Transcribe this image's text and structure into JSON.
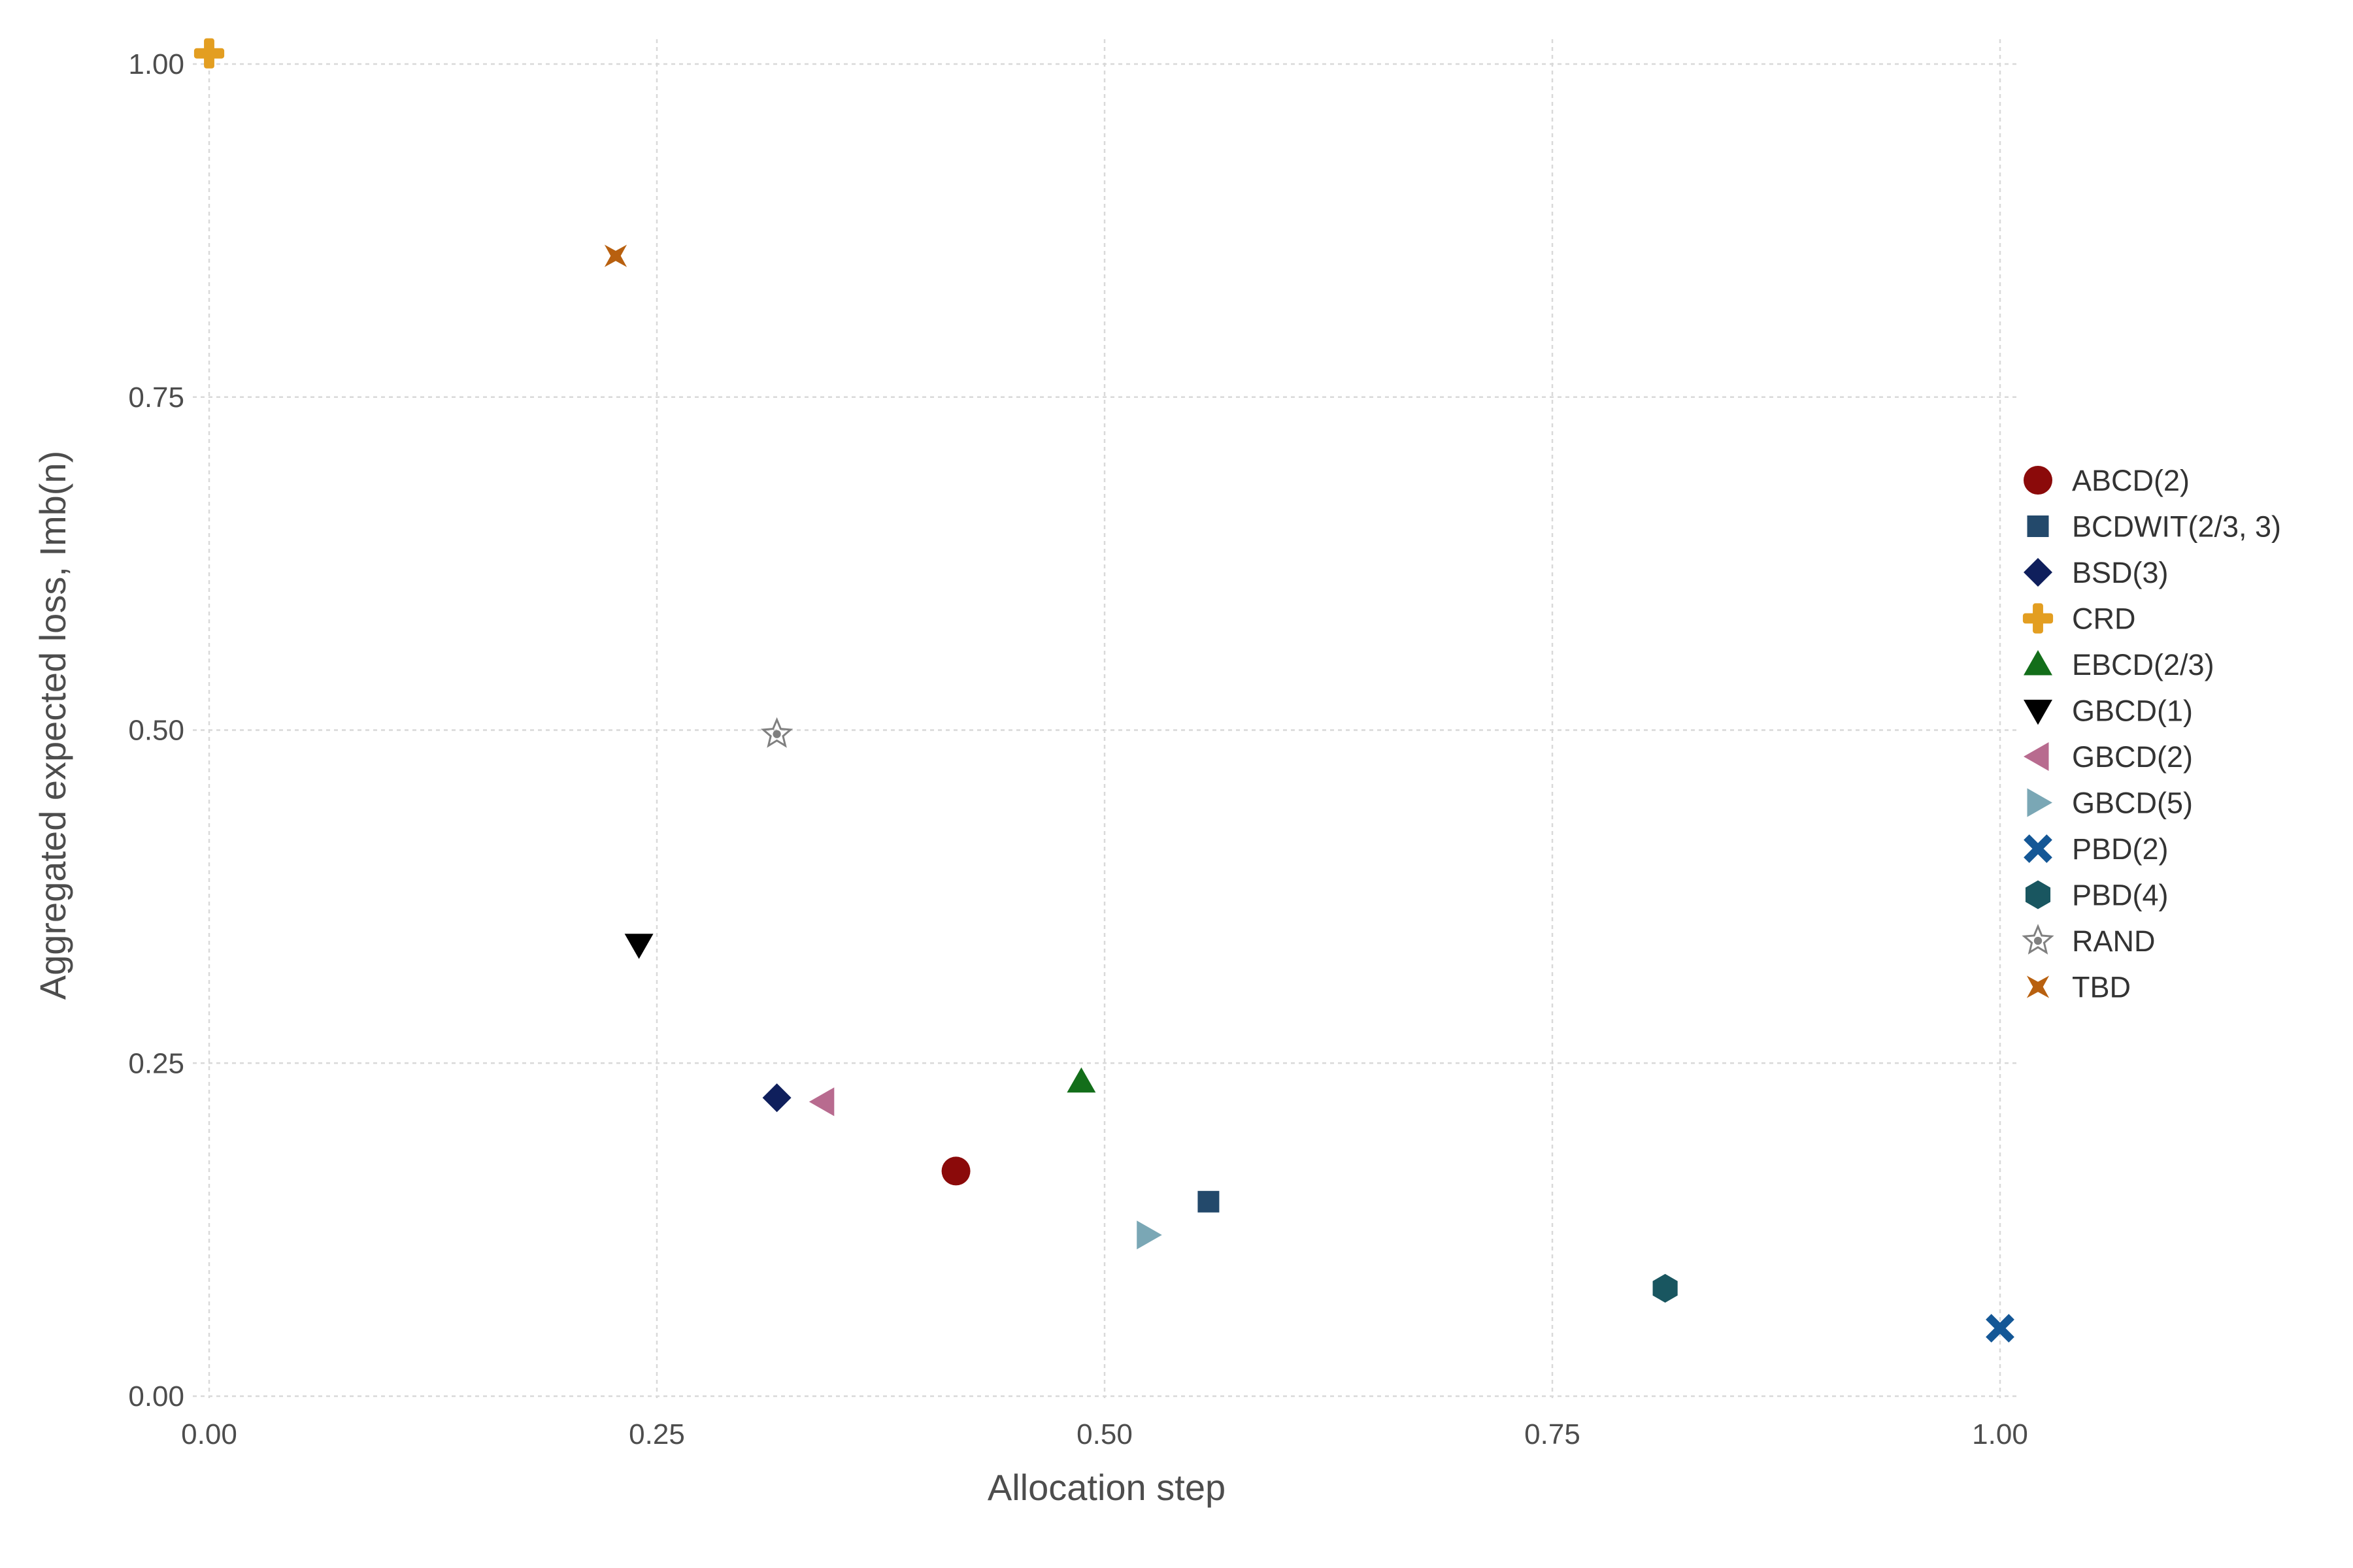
{
  "chart_data": {
    "type": "scatter",
    "title": "",
    "xlabel": "Allocation step",
    "ylabel": "Aggregated expected loss, Imb(n)",
    "xlim": [
      0,
      1
    ],
    "ylim": [
      0,
      1
    ],
    "grid": true,
    "legend_placement": "right",
    "xticks": [
      {
        "value": 0,
        "label": "0.00"
      },
      {
        "value": 0.25,
        "label": "0.25"
      },
      {
        "value": 0.5,
        "label": "0.50"
      },
      {
        "value": 0.75,
        "label": "0.75"
      },
      {
        "value": 1,
        "label": "1.00"
      }
    ],
    "yticks": [
      {
        "value": 0,
        "label": "0.00"
      },
      {
        "value": 0.25,
        "label": "0.25"
      },
      {
        "value": 0.5,
        "label": "0.50"
      },
      {
        "value": 0.75,
        "label": "0.75"
      },
      {
        "value": 1,
        "label": "1.00"
      }
    ],
    "series": [
      {
        "name": "ABCD(2)",
        "x": 0.417,
        "y": 0.169,
        "marker": "circle",
        "color": "#8b0a0a"
      },
      {
        "name": "BCDWIT(2/3, 3)",
        "x": 0.558,
        "y": 0.146,
        "marker": "square",
        "color": "#23496b"
      },
      {
        "name": "BSD(3)",
        "x": 0.317,
        "y": 0.224,
        "marker": "diamond",
        "color": "#0f1f5c"
      },
      {
        "name": "CRD",
        "x": 0.0,
        "y": 1.008,
        "marker": "plus",
        "color": "#e39e21"
      },
      {
        "name": "EBCD(2/3)",
        "x": 0.487,
        "y": 0.236,
        "marker": "triangle-up",
        "color": "#136e1a"
      },
      {
        "name": "GBCD(1)",
        "x": 0.24,
        "y": 0.339,
        "marker": "triangle-down",
        "color": "#000000"
      },
      {
        "name": "GBCD(2)",
        "x": 0.343,
        "y": 0.221,
        "marker": "triangle-left",
        "color": "#b86b8f"
      },
      {
        "name": "GBCD(5)",
        "x": 0.524,
        "y": 0.121,
        "marker": "triangle-right",
        "color": "#7aa7b5"
      },
      {
        "name": "PBD(2)",
        "x": 1.0,
        "y": 0.051,
        "marker": "x",
        "color": "#145796"
      },
      {
        "name": "PBD(4)",
        "x": 0.813,
        "y": 0.081,
        "marker": "hexagon",
        "color": "#195660"
      },
      {
        "name": "RAND",
        "x": 0.317,
        "y": 0.497,
        "marker": "star",
        "color": "#808080"
      },
      {
        "name": "TBD",
        "x": 0.227,
        "y": 0.856,
        "marker": "star4",
        "color": "#b8600f"
      }
    ]
  }
}
